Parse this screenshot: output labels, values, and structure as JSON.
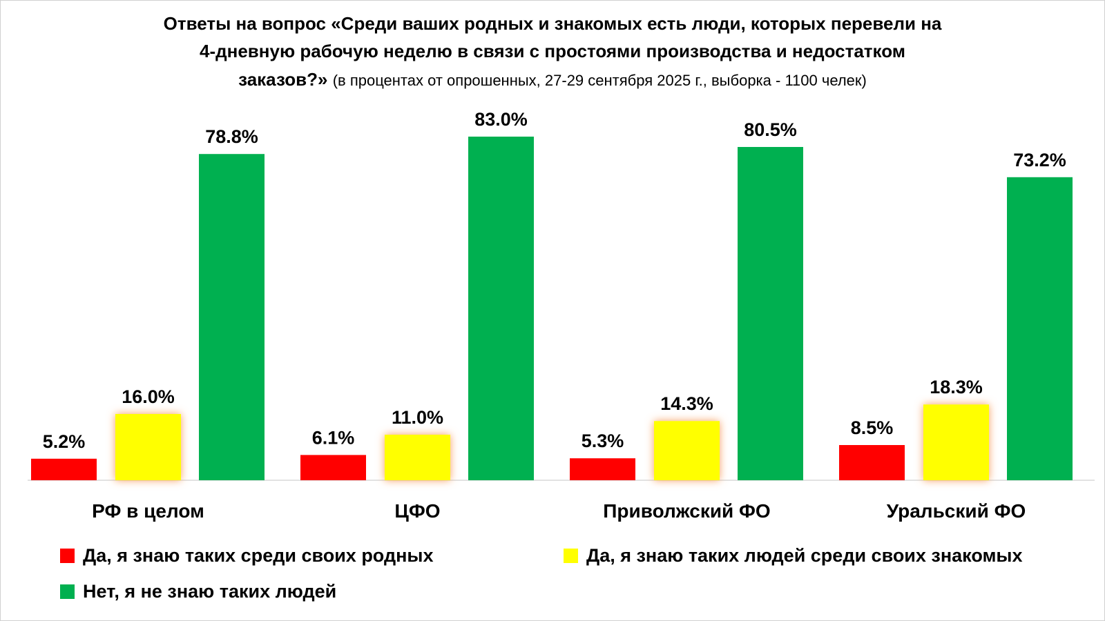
{
  "chart_data": {
    "type": "bar",
    "title_line1": "Ответы на вопрос «Среди ваших родных и знакомых есть люди, которых перевели на",
    "title_line2": "4-дневную рабочую неделю в связи с простоями производства и недостатком",
    "title_line3": "заказов?»",
    "subtitle": "(в процентах от опрошенных, 27-29 сентября 2025 г., выборка - 1100 челек)",
    "categories": [
      "РФ в целом",
      "ЦФО",
      "Приволжский ФО",
      "Уральский ФО"
    ],
    "series": [
      {
        "name": "Да, я знаю таких среди своих родных",
        "color": "#ff0000",
        "values": [
          5.2,
          6.1,
          5.3,
          8.5
        ]
      },
      {
        "name": "Да, я знаю таких людей среди своих знакомых",
        "color": "#ffff00",
        "values": [
          16.0,
          11.0,
          14.3,
          18.3
        ]
      },
      {
        "name": "Нет, я не знаю таких людей",
        "color": "#00b050",
        "values": [
          78.8,
          83.0,
          80.5,
          73.2
        ]
      }
    ],
    "ylim": [
      0,
      83
    ],
    "grid": false,
    "legend_position": "bottom",
    "xlabel": "",
    "ylabel": ""
  }
}
